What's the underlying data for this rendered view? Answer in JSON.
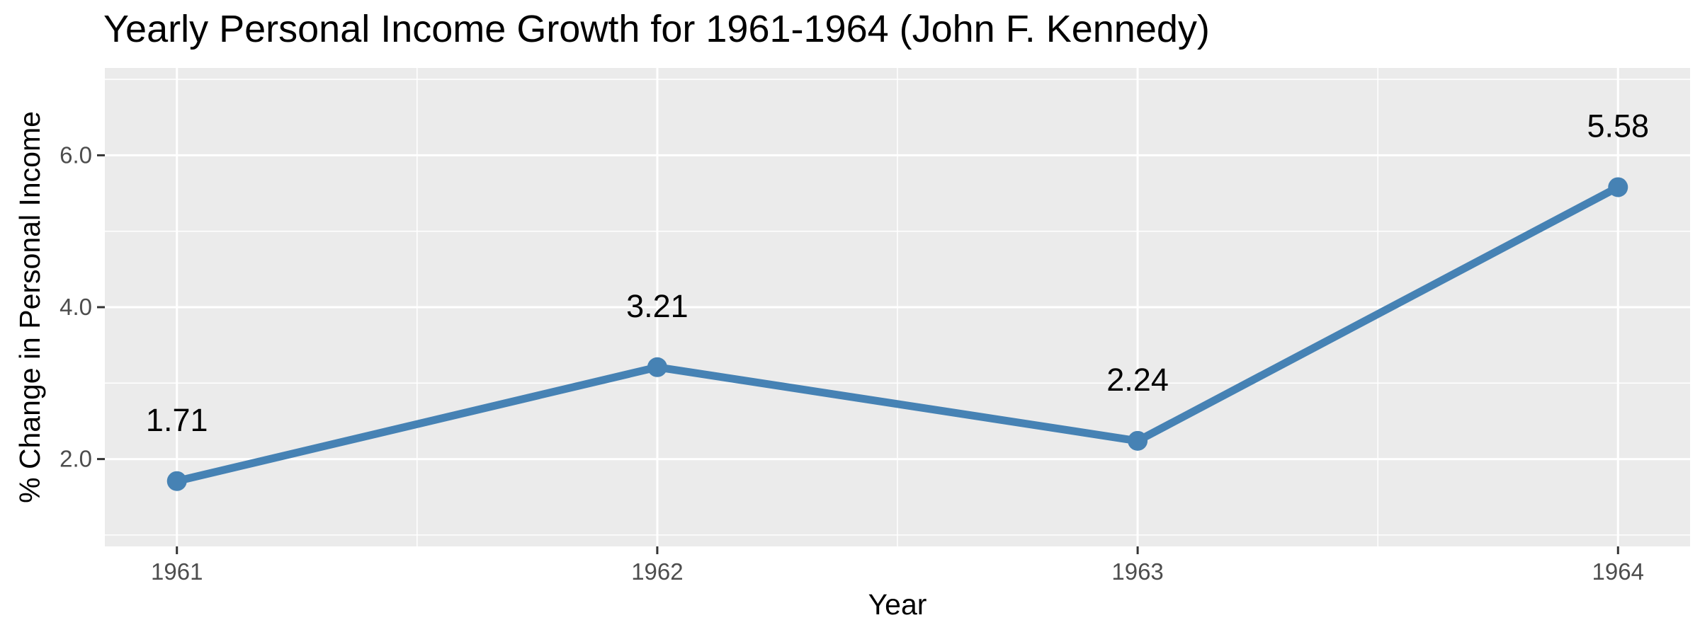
{
  "chart_data": {
    "type": "line",
    "title": "Yearly Personal Income Growth for 1961-1964 (John F. Kennedy)",
    "xlabel": "Year",
    "ylabel": "% Change in Personal Income",
    "categories": [
      "1961",
      "1962",
      "1963",
      "1964"
    ],
    "series": [
      {
        "values": [
          1.71,
          3.21,
          2.24,
          5.58
        ]
      }
    ],
    "data_labels": [
      "1.71",
      "3.21",
      "2.24",
      "5.58"
    ],
    "ylim": [
      0.85,
      7.15
    ],
    "y_ticks": [
      2.0,
      4.0,
      6.0
    ],
    "y_tick_labels": [
      "2.0",
      "4.0",
      "6.0"
    ],
    "grid": true,
    "line_color": "#4682B4",
    "panel_background": "#EBEBEB",
    "grid_color": "#FFFFFF"
  }
}
